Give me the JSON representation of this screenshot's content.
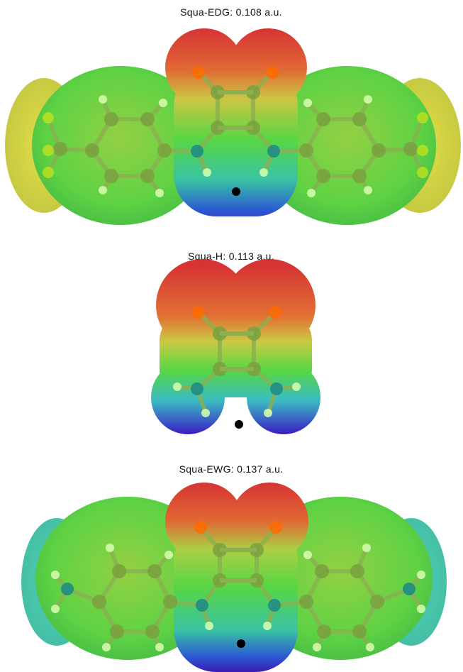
{
  "panels": [
    {
      "label": "Squa-EDG: 0.108 a.u."
    },
    {
      "label": "Squa-H: 0.113 a.u."
    },
    {
      "label": "Squa-EWG: 0.137 a.u."
    }
  ]
}
